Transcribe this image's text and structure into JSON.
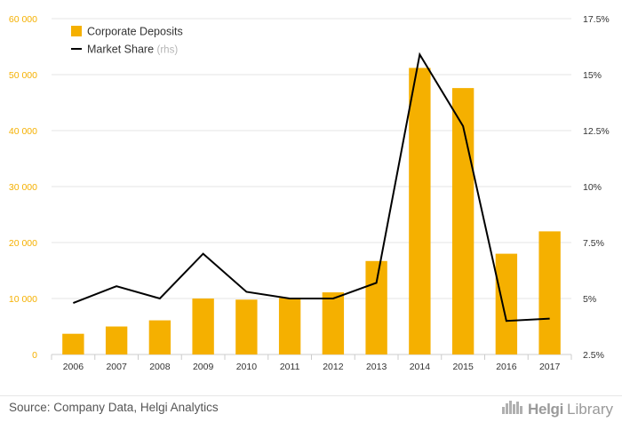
{
  "chart_data": {
    "type": "bar",
    "categories": [
      "2006",
      "2007",
      "2008",
      "2009",
      "2010",
      "2011",
      "2012",
      "2013",
      "2014",
      "2015",
      "2016",
      "2017"
    ],
    "series": [
      {
        "name": "Corporate Deposits",
        "type": "bar",
        "axis": "left",
        "color": "#f5b000",
        "values": [
          3700,
          5000,
          6100,
          10000,
          9800,
          10100,
          11100,
          16700,
          51200,
          47600,
          18000,
          22000
        ]
      },
      {
        "name": "Market Share",
        "name_suffix": "(rhs)",
        "type": "line",
        "axis": "right",
        "color": "#000000",
        "values": [
          4.8,
          5.55,
          5.0,
          7.0,
          5.3,
          5.0,
          5.0,
          5.7,
          15.9,
          12.7,
          4.0,
          4.1
        ]
      }
    ],
    "y_left": {
      "range": [
        0,
        60000
      ],
      "ticks": [
        0,
        10000,
        20000,
        30000,
        40000,
        50000,
        60000
      ],
      "tick_labels": [
        "0",
        "10 000",
        "20 000",
        "30 000",
        "40 000",
        "50 000",
        "60 000"
      ],
      "label_color": "#f5b000"
    },
    "y_right": {
      "range": [
        2.5,
        17.5
      ],
      "ticks": [
        2.5,
        5,
        7.5,
        10,
        12.5,
        15,
        17.5
      ],
      "tick_labels": [
        "2.5%",
        "5%",
        "7.5%",
        "10%",
        "12.5%",
        "15%",
        "17.5%"
      ]
    },
    "title": "",
    "xlabel": "",
    "ylabel": "",
    "grid": true,
    "legend_position": "top-left"
  },
  "footer": {
    "source": "Source: Company Data, Helgi Analytics",
    "brand_bold": "Helgi",
    "brand_light": "Library"
  },
  "colors": {
    "bar": "#f5b000",
    "line": "#000000",
    "grid": "#e6e6e6",
    "axis_text": "#333333"
  },
  "icons": {
    "brand_icon": "city-skyline-icon"
  }
}
